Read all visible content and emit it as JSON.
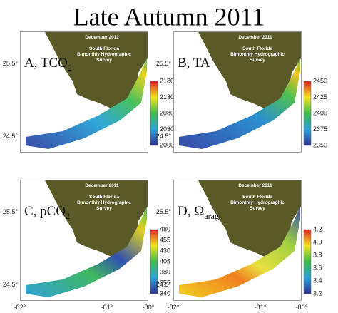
{
  "title": "Late Autumn 2011",
  "panels": [
    {
      "label": "A, TCO",
      "label_sub": "2",
      "date": "December 2011",
      "survey": [
        "South Florida",
        "Bimonthly Hydrographic",
        "Survey"
      ],
      "colorbar_ticks": [
        "2180",
        "2130",
        "2080",
        "2030",
        "2000"
      ]
    },
    {
      "label": "B, TA",
      "label_sub": "",
      "date": "December 2011",
      "survey": [
        "South Florida",
        "Bimonthly Hydrographic",
        "Survey"
      ],
      "colorbar_ticks": [
        "2450",
        "2425",
        "2400",
        "2375",
        "2350"
      ]
    },
    {
      "label": "C, pCO",
      "label_sub": "2",
      "date": "December 2011",
      "survey": [
        "South Florida",
        "Bimonthly Hydrographic",
        "Survey"
      ],
      "colorbar_ticks": [
        "480",
        "455",
        "430",
        "405",
        "380",
        "355",
        "340"
      ]
    },
    {
      "label": "D, Ω",
      "label_sub": "arag",
      "date": "December 2011",
      "survey": [
        "South Florida",
        "Bimonthly Hydrographic",
        "Survey"
      ],
      "colorbar_ticks": [
        "4.2",
        "4.0",
        "3.8",
        "3.6",
        "3.4",
        "3.2"
      ]
    }
  ],
  "lat_labels": [
    "25.5°",
    "24.5°"
  ],
  "lon_labels": [
    "-82°",
    "-81°",
    "-80°"
  ]
}
